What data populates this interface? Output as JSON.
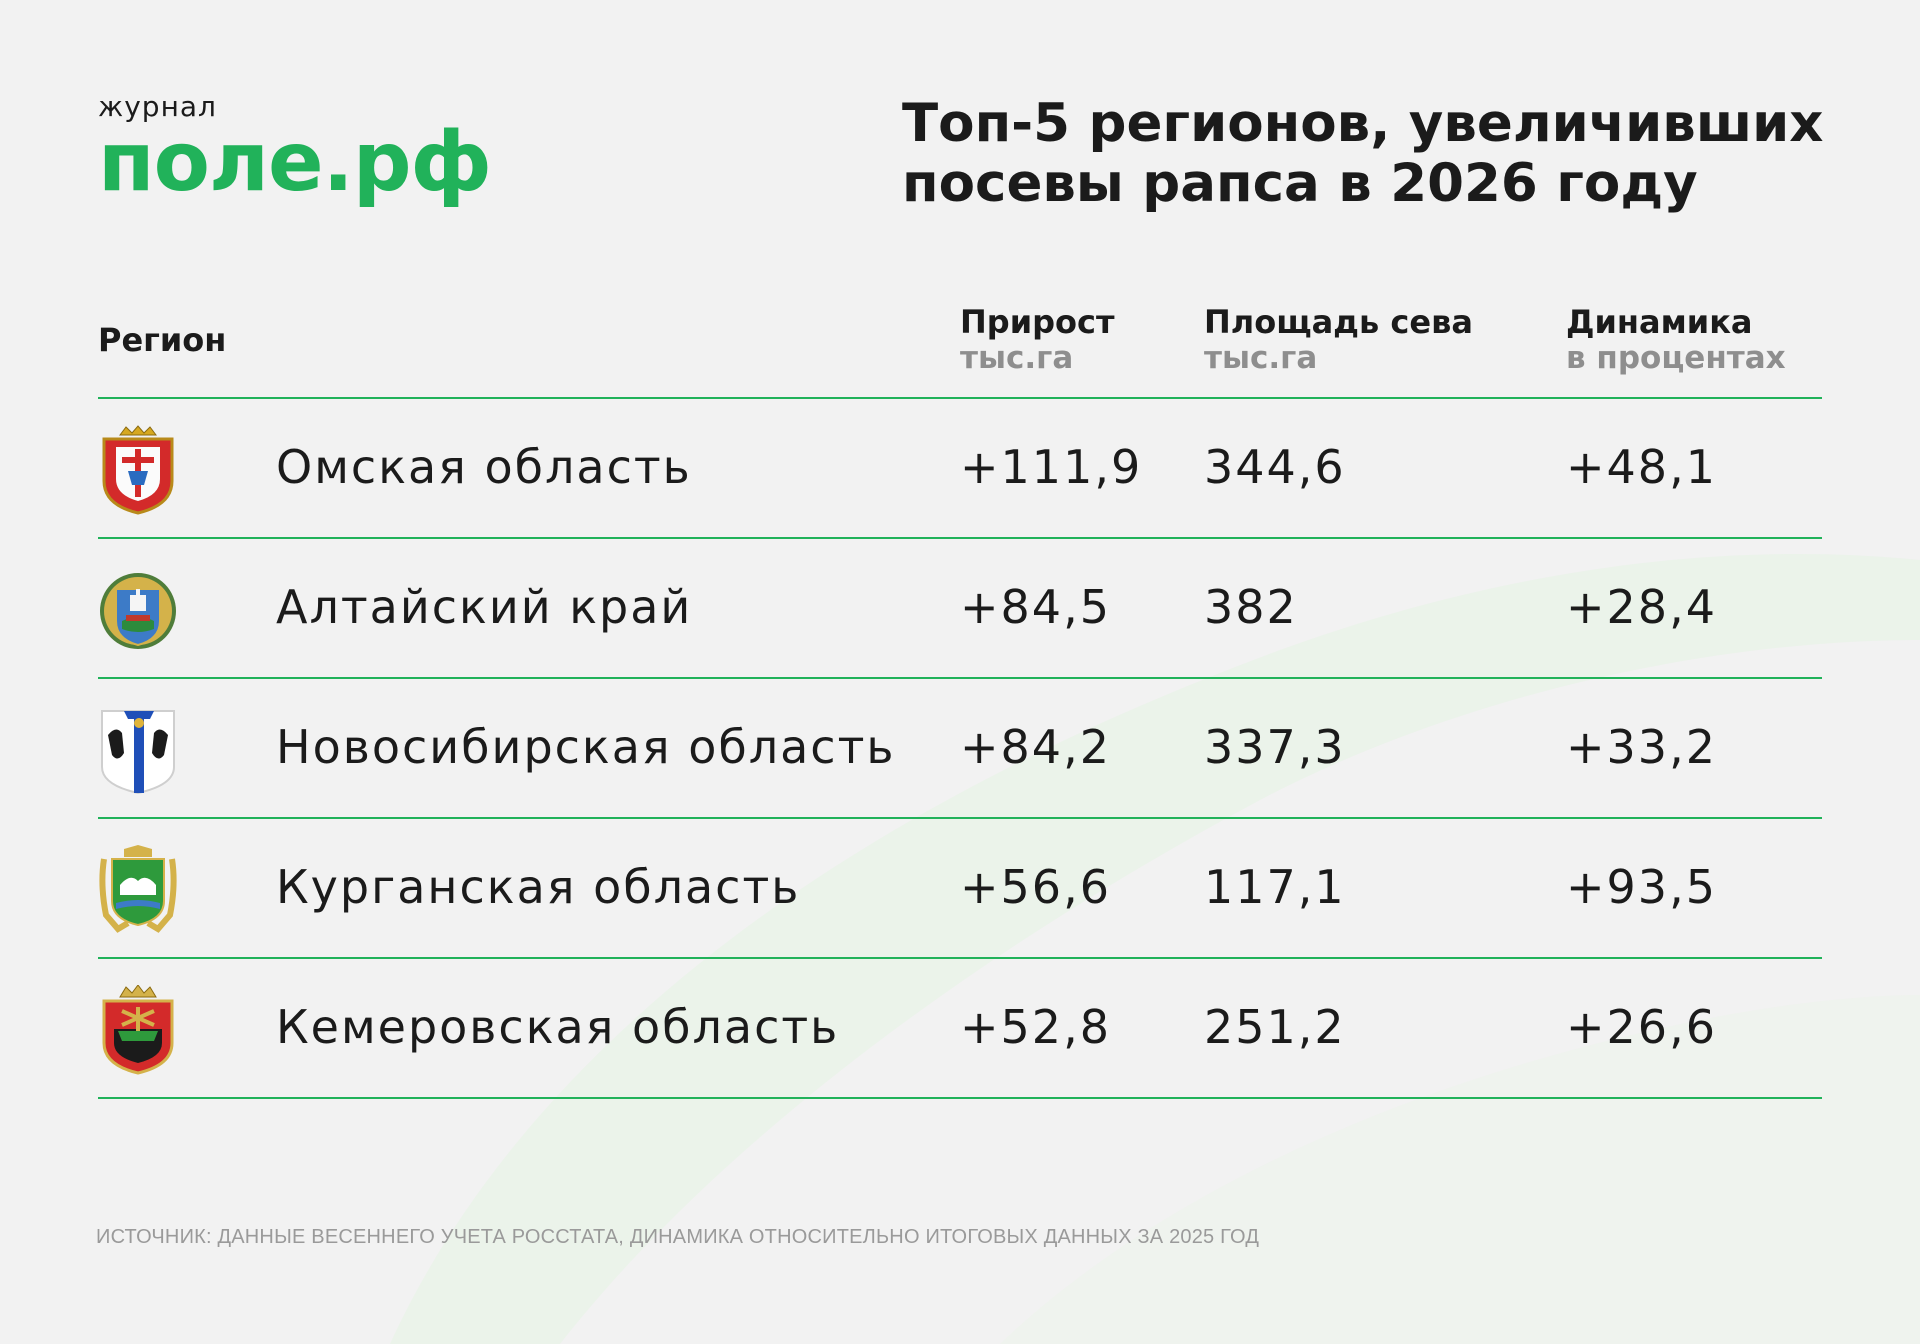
{
  "logo": {
    "top_text": "журнал",
    "main_text": "поле.рф",
    "color": "#21b25a"
  },
  "headline": {
    "line1": "Топ-5 регионов, увеличивших",
    "line2": "посевы рапса в 2026 году"
  },
  "table": {
    "headers": {
      "region": "Регион",
      "growth": {
        "label": "Прирост",
        "unit": "тыс.га"
      },
      "area": {
        "label": "Площадь сева",
        "unit": "тыс.га"
      },
      "dynamics": {
        "label": "Динамика",
        "unit": "в процентах"
      }
    },
    "rows": [
      {
        "region": "Омская область",
        "growth": "+111,9",
        "area": "344,6",
        "dynamics": "+48,1",
        "emblem": "omsk-coat-of-arms-icon"
      },
      {
        "region": "Алтайский край",
        "growth": "+84,5",
        "area": "382",
        "dynamics": "+28,4",
        "emblem": "altai-coat-of-arms-icon"
      },
      {
        "region": "Новосибирская область",
        "growth": "+84,2",
        "area": "337,3",
        "dynamics": "+33,2",
        "emblem": "novosibirsk-coat-of-arms-icon"
      },
      {
        "region": "Курганская область",
        "growth": "+56,6",
        "area": "117,1",
        "dynamics": "+93,5",
        "emblem": "kurgan-coat-of-arms-icon"
      },
      {
        "region": "Кемеровская область",
        "growth": "+52,8",
        "area": "251,2",
        "dynamics": "+26,6",
        "emblem": "kemerovo-coat-of-arms-icon"
      }
    ]
  },
  "footnote": "ИСТОЧНИК: ДАННЫЕ ВЕСЕННЕГО УЧЕТА РОССТАТА, ДИНАМИКА ОТНОСИТЕЛЬНО ИТОГОВЫХ ДАННЫХ ЗА 2025 ГОД",
  "colors": {
    "accent": "#21b25a",
    "background": "#f2f2f2",
    "text": "#1b1b1b",
    "muted": "#8e8e8e"
  }
}
